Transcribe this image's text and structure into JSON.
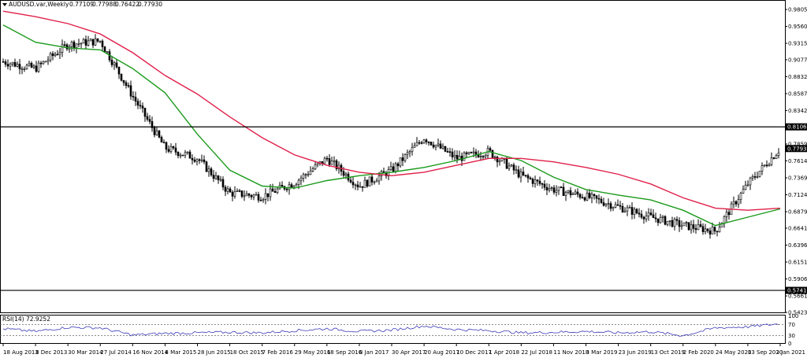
{
  "window": {
    "title": "AUDUSD.var,Weekly",
    "ohlc": [
      "0.77109",
      "0.77988",
      "0.76422",
      "0.77930"
    ],
    "dropdown_icon": "triangle-down-icon"
  },
  "rsi_panel": {
    "title": "RSI(14) 72.9252",
    "levels": [
      "100",
      "70",
      "30",
      "0"
    ]
  },
  "colors": {
    "candle": "#000000",
    "ma_fast": "#1a9a1a",
    "ma_slow": "#e0204a",
    "rsi_line": "#3a3ab8",
    "level_line": "#000000",
    "price_label_bg": "#000000",
    "price_label_text": "#ffffff"
  },
  "chart_data": {
    "type": "line",
    "symbol": "AUDUSD.var",
    "timeframe": "Weekly",
    "price_axis_ticks": [
      "0.98050",
      "0.95600",
      "0.93150",
      "0.90770",
      "0.88320",
      "0.85870",
      "0.83420",
      "0.81066",
      "0.78590",
      "0.77930",
      "0.76140",
      "0.73690",
      "0.71240",
      "0.68790",
      "0.66410",
      "0.63960",
      "0.61510",
      "0.59060",
      "0.57410",
      "0.56610",
      "0.54230"
    ],
    "ylim": [
      0.5423,
      0.9805
    ],
    "highlighted_labels": [
      "0.81066",
      "0.77930",
      "0.57410"
    ],
    "horizontal_levels": [
      0.81066,
      0.5741
    ],
    "x_tick_labels": [
      "18 Aug 2013",
      "8 Dec 2013",
      "30 Mar 2014",
      "27 Jul 2014",
      "16 Nov 2014",
      "8 Mar 2015",
      "28 Jun 2015",
      "18 Oct 2015",
      "7 Feb 2016",
      "29 May 2016",
      "18 Sep 2016",
      "8 Jan 2017",
      "30 Apr 2017",
      "20 Aug 2017",
      "10 Dec 2017",
      "1 Apr 2018",
      "22 Jul 2018",
      "11 Nov 2018",
      "3 Mar 2019",
      "23 Jun 2019",
      "13 Oct 2019",
      "2 Feb 2020",
      "24 May 2020",
      "13 Sep 2020",
      "3 Jan 2021"
    ],
    "price_keypoints": [
      [
        "18 Aug 2013",
        0.905
      ],
      [
        "8 Dec 2013",
        0.895
      ],
      [
        "30 Mar 2014",
        0.93
      ],
      [
        "27 Jul 2014",
        0.935
      ],
      [
        "16 Nov 2014",
        0.855
      ],
      [
        "8 Mar 2015",
        0.78
      ],
      [
        "28 Jun 2015",
        0.765
      ],
      [
        "18 Oct 2015",
        0.715
      ],
      [
        "7 Feb 2016",
        0.71
      ],
      [
        "29 May 2016",
        0.73
      ],
      [
        "18 Sep 2016",
        0.765
      ],
      [
        "8 Jan 2017",
        0.725
      ],
      [
        "30 Apr 2017",
        0.748
      ],
      [
        "20 Aug 2017",
        0.795
      ],
      [
        "10 Dec 2017",
        0.765
      ],
      [
        "1 Apr 2018",
        0.775
      ],
      [
        "22 Jul 2018",
        0.74
      ],
      [
        "11 Nov 2018",
        0.72
      ],
      [
        "3 Mar 2019",
        0.71
      ],
      [
        "23 Jun 2019",
        0.695
      ],
      [
        "13 Oct 2019",
        0.68
      ],
      [
        "2 Feb 2020",
        0.668
      ],
      [
        "24 May 2020",
        0.66
      ],
      [
        "13 Sep 2020",
        0.728
      ],
      [
        "3 Jan 2021",
        0.7793
      ]
    ],
    "series": [
      {
        "color": "#1a9a1a",
        "points": [
          [
            "18 Aug 2013",
            0.958
          ],
          [
            "8 Dec 2013",
            0.933
          ],
          [
            "30 Mar 2014",
            0.925
          ],
          [
            "27 Jul 2014",
            0.922
          ],
          [
            "16 Nov 2014",
            0.895
          ],
          [
            "8 Mar 2015",
            0.86
          ],
          [
            "28 Jun 2015",
            0.8
          ],
          [
            "18 Oct 2015",
            0.748
          ],
          [
            "7 Feb 2016",
            0.725
          ],
          [
            "29 May 2016",
            0.722
          ],
          [
            "18 Sep 2016",
            0.733
          ],
          [
            "8 Jan 2017",
            0.74
          ],
          [
            "30 Apr 2017",
            0.745
          ],
          [
            "20 Aug 2017",
            0.752
          ],
          [
            "10 Dec 2017",
            0.762
          ],
          [
            "1 Apr 2018",
            0.775
          ],
          [
            "22 Jul 2018",
            0.762
          ],
          [
            "11 Nov 2018",
            0.738
          ],
          [
            "3 Mar 2019",
            0.72
          ],
          [
            "23 Jun 2019",
            0.712
          ],
          [
            "13 Oct 2019",
            0.705
          ],
          [
            "2 Feb 2020",
            0.69
          ],
          [
            "24 May 2020",
            0.668
          ],
          [
            "13 Sep 2020",
            0.68
          ],
          [
            "3 Jan 2021",
            0.692
          ]
        ]
      },
      {
        "color": "#e0204a",
        "points": [
          [
            "18 Aug 2013",
            0.978
          ],
          [
            "8 Dec 2013",
            0.97
          ],
          [
            "30 Mar 2014",
            0.96
          ],
          [
            "27 Jul 2014",
            0.945
          ],
          [
            "16 Nov 2014",
            0.918
          ],
          [
            "8 Mar 2015",
            0.885
          ],
          [
            "28 Jun 2015",
            0.858
          ],
          [
            "18 Oct 2015",
            0.825
          ],
          [
            "7 Feb 2016",
            0.795
          ],
          [
            "29 May 2016",
            0.77
          ],
          [
            "18 Sep 2016",
            0.755
          ],
          [
            "8 Jan 2017",
            0.745
          ],
          [
            "30 Apr 2017",
            0.74
          ],
          [
            "20 Aug 2017",
            0.745
          ],
          [
            "10 Dec 2017",
            0.755
          ],
          [
            "1 Apr 2018",
            0.765
          ],
          [
            "22 Jul 2018",
            0.765
          ],
          [
            "11 Nov 2018",
            0.76
          ],
          [
            "3 Mar 2019",
            0.752
          ],
          [
            "23 Jun 2019",
            0.742
          ],
          [
            "13 Oct 2019",
            0.728
          ],
          [
            "2 Feb 2020",
            0.708
          ],
          [
            "24 May 2020",
            0.693
          ],
          [
            "13 Sep 2020",
            0.69
          ],
          [
            "3 Jan 2021",
            0.693
          ]
        ]
      }
    ],
    "rsi": {
      "ylim": [
        0,
        100
      ],
      "levels": [
        70,
        30
      ],
      "points": [
        [
          "18 Aug 2013",
          55
        ],
        [
          "8 Dec 2013",
          45
        ],
        [
          "30 Mar 2014",
          60
        ],
        [
          "27 Jul 2014",
          58
        ],
        [
          "16 Nov 2014",
          32
        ],
        [
          "8 Mar 2015",
          38
        ],
        [
          "28 Jun 2015",
          40
        ],
        [
          "18 Oct 2015",
          42
        ],
        [
          "7 Feb 2016",
          40
        ],
        [
          "29 May 2016",
          48
        ],
        [
          "18 Sep 2016",
          55
        ],
        [
          "8 Jan 2017",
          45
        ],
        [
          "30 Apr 2017",
          50
        ],
        [
          "20 Aug 2017",
          65
        ],
        [
          "10 Dec 2017",
          52
        ],
        [
          "1 Apr 2018",
          48
        ],
        [
          "22 Jul 2018",
          40
        ],
        [
          "11 Nov 2018",
          42
        ],
        [
          "3 Mar 2019",
          45
        ],
        [
          "23 Jun 2019",
          40
        ],
        [
          "13 Oct 2019",
          44
        ],
        [
          "2 Feb 2020",
          30
        ],
        [
          "24 May 2020",
          58
        ],
        [
          "13 Sep 2020",
          62
        ],
        [
          "3 Jan 2021",
          72.9252
        ]
      ]
    }
  }
}
